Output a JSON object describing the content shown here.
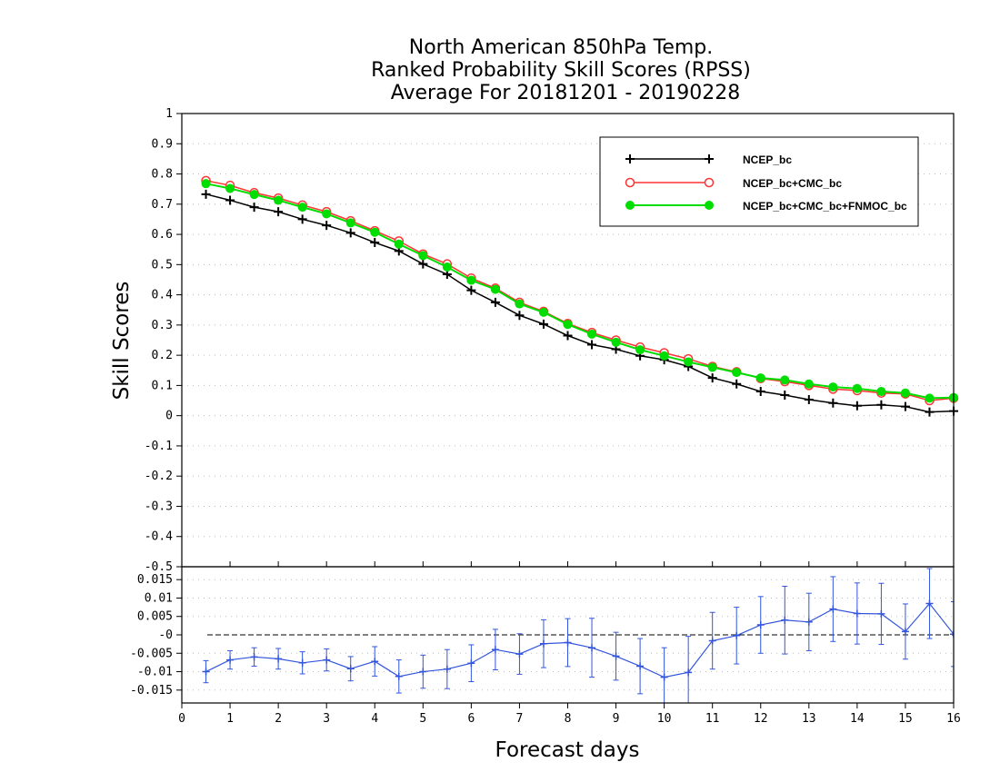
{
  "chart_data": [
    {
      "type": "line",
      "title_lines": [
        "North American 850hPa Temp.",
        "Ranked Probability Skill Scores (RPSS)",
        "Average For 20181201 - 20190228"
      ],
      "ylabel": "Skill Scores",
      "xlim": [
        0,
        16
      ],
      "ylim": [
        -0.5,
        1
      ],
      "yticks": [
        1,
        0.9,
        0.8,
        0.7,
        0.6,
        0.5,
        0.4,
        0.3,
        0.2,
        0.1,
        0,
        -0.1,
        -0.2,
        -0.3,
        -0.4,
        -0.5
      ],
      "ytick_labels": [
        "1",
        "0.9",
        "0.8",
        "0.7",
        "0.6",
        "0.5",
        "0.4",
        "0.3",
        "0.2",
        "0.1",
        "0",
        "-0.1",
        "-0.2",
        "-0.3",
        "-0.4",
        "-0.5"
      ],
      "grid": true,
      "legend_position": "top-right",
      "x": [
        0.5,
        1,
        1.5,
        2,
        2.5,
        3,
        3.5,
        4,
        4.5,
        5,
        5.5,
        6,
        6.5,
        7,
        7.5,
        8,
        8.5,
        9,
        9.5,
        10,
        10.5,
        11,
        11.5,
        12,
        12.5,
        13,
        13.5,
        14,
        14.5,
        15,
        15.5,
        16
      ],
      "series": [
        {
          "name": "NCEP_bc",
          "color": "#000000",
          "marker": "plus",
          "values": [
            0.733,
            0.713,
            0.69,
            0.675,
            0.65,
            0.63,
            0.605,
            0.573,
            0.545,
            0.502,
            0.468,
            0.415,
            0.375,
            0.332,
            0.303,
            0.265,
            0.235,
            0.22,
            0.198,
            0.185,
            0.163,
            0.125,
            0.105,
            0.08,
            0.068,
            0.053,
            0.042,
            0.033,
            0.036,
            0.03,
            0.012,
            0.015
          ]
        },
        {
          "name": "NCEP_bc+CMC_bc",
          "color": "#ff3333",
          "marker": "open-circle",
          "values": [
            0.778,
            0.762,
            0.738,
            0.72,
            0.697,
            0.675,
            0.645,
            0.612,
            0.578,
            0.535,
            0.502,
            0.455,
            0.422,
            0.375,
            0.345,
            0.305,
            0.275,
            0.25,
            0.227,
            0.208,
            0.188,
            0.163,
            0.145,
            0.123,
            0.113,
            0.1,
            0.088,
            0.083,
            0.075,
            0.072,
            0.05,
            0.058
          ]
        },
        {
          "name": "NCEP_bc+CMC_bc+FNMOC_bc",
          "color": "#00dd00",
          "marker": "filled-circle",
          "values": [
            0.768,
            0.752,
            0.732,
            0.713,
            0.69,
            0.668,
            0.638,
            0.607,
            0.568,
            0.53,
            0.492,
            0.448,
            0.418,
            0.37,
            0.342,
            0.302,
            0.27,
            0.243,
            0.218,
            0.198,
            0.178,
            0.16,
            0.143,
            0.125,
            0.118,
            0.105,
            0.095,
            0.09,
            0.08,
            0.075,
            0.058,
            0.06
          ]
        }
      ]
    },
    {
      "type": "line",
      "xlabel": "Forecast days",
      "xlim": [
        0,
        16
      ],
      "xticks": [
        0,
        1,
        2,
        3,
        4,
        5,
        6,
        7,
        8,
        9,
        10,
        11,
        12,
        13,
        14,
        15,
        16
      ],
      "xtick_labels": [
        "0",
        "1",
        "2",
        "3",
        "4",
        "5",
        "6",
        "7",
        "8",
        "9",
        "10",
        "11",
        "12",
        "13",
        "14",
        "15",
        "16"
      ],
      "ylim": [
        -0.0185,
        0.0185
      ],
      "yticks": [
        0.015,
        0.01,
        0.005,
        0,
        -0.005,
        -0.01,
        -0.015
      ],
      "ytick_labels": [
        "0.015",
        "0.01",
        "0.005",
        "-0",
        "-0.005",
        "-0.01",
        "-0.015"
      ],
      "grid": true,
      "zero_line": true,
      "series": [
        {
          "color": "#3355dd",
          "marker": "plus",
          "error_bars": true,
          "x": [
            0.5,
            1,
            1.5,
            2,
            2.5,
            3,
            3.5,
            4,
            4.5,
            5,
            5.5,
            6,
            6.5,
            7,
            7.5,
            8,
            8.5,
            9,
            9.5,
            10,
            10.5,
            11,
            11.5,
            12,
            12.5,
            13,
            13.5,
            14,
            14.5,
            15,
            15.5,
            16
          ],
          "values": [
            -0.01,
            -0.0068,
            -0.006,
            -0.0065,
            -0.0076,
            -0.0068,
            -0.0092,
            -0.0072,
            -0.0113,
            -0.01,
            -0.0093,
            -0.0077,
            -0.004,
            -0.0052,
            -0.0024,
            -0.0021,
            -0.0035,
            -0.0058,
            -0.0085,
            -0.0115,
            -0.0102,
            -0.0016,
            -0.0002,
            0.0027,
            0.004,
            0.0035,
            0.007,
            0.0058,
            0.0057,
            0.0009,
            0.0085,
            0.0002
          ],
          "error": [
            0.003,
            0.0025,
            0.0025,
            0.0028,
            0.003,
            0.003,
            0.0033,
            0.004,
            0.0045,
            0.0045,
            0.0053,
            0.005,
            0.0055,
            0.0055,
            0.0065,
            0.0065,
            0.008,
            0.0065,
            0.0075,
            0.008,
            0.0098,
            0.0077,
            0.0077,
            0.0077,
            0.0092,
            0.0078,
            0.0088,
            0.0083,
            0.0083,
            0.0075,
            0.0095,
            0.0088
          ]
        }
      ]
    }
  ],
  "legend": {
    "items": [
      {
        "label": "NCEP_bc"
      },
      {
        "label": "NCEP_bc+CMC_bc"
      },
      {
        "label": "NCEP_bc+CMC_bc+FNMOC_bc"
      }
    ]
  }
}
